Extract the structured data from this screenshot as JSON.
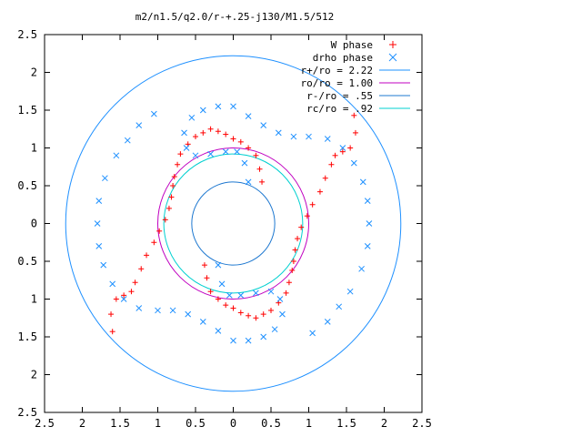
{
  "chart_data": {
    "type": "scatter",
    "title": "m2/n1.5/q2.0/r-+.25-j130/M1.5/512",
    "xlabel": "",
    "ylabel": "",
    "xlim": [
      -2.5,
      2.5
    ],
    "ylim": [
      -2.5,
      2.5
    ],
    "x_ticks": [
      "2.5",
      "2",
      "1.5",
      "1",
      "0.5",
      "0",
      "0.5",
      "1",
      "1.5",
      "2",
      "2.5"
    ],
    "y_ticks": [
      "2.5",
      "2",
      "1.5",
      "1",
      "0.5",
      "0",
      "0.5",
      "1",
      "1.5",
      "2",
      "2.5"
    ],
    "grid": false,
    "legend_position": "top-right",
    "series": [
      {
        "name": "W phase",
        "marker": "plus",
        "color": "#ff0000",
        "description_values": "two-arm spiral of points"
      },
      {
        "name": "drho phase",
        "marker": "x",
        "color": "#1e90ff",
        "description_values": "two-arm spiral of points"
      }
    ],
    "circles": [
      {
        "name": "r+/ro = 2.22",
        "radius": 2.22,
        "color": "#1e90ff"
      },
      {
        "name": "ro/ro = 1.00",
        "radius": 1.0,
        "color": "#c000c0"
      },
      {
        "name": "r-/ro = .55",
        "radius": 0.55,
        "color": "#1e78d0"
      },
      {
        "name": "rc/ro = .92",
        "radius": 0.92,
        "color": "#00d0d0"
      }
    ],
    "spiral_points": {
      "W phase": [
        [
          -1.6,
          -1.43
        ],
        [
          -1.62,
          -1.2
        ],
        [
          -1.55,
          -1.0
        ],
        [
          -1.45,
          -0.95
        ],
        [
          -1.35,
          -0.9
        ],
        [
          -1.3,
          -0.78
        ],
        [
          -1.22,
          -0.6
        ],
        [
          -1.15,
          -0.42
        ],
        [
          -1.05,
          -0.25
        ],
        [
          -0.98,
          -0.1
        ],
        [
          -0.9,
          0.05
        ],
        [
          -0.85,
          0.2
        ],
        [
          -0.82,
          0.35
        ],
        [
          -0.8,
          0.5
        ],
        [
          -0.78,
          0.62
        ],
        [
          -0.74,
          0.78
        ],
        [
          -0.7,
          0.92
        ],
        [
          -0.6,
          1.05
        ],
        [
          -0.5,
          1.15
        ],
        [
          -0.4,
          1.2
        ],
        [
          -0.3,
          1.25
        ],
        [
          -0.2,
          1.22
        ],
        [
          -0.1,
          1.18
        ],
        [
          0.0,
          1.12
        ],
        [
          0.1,
          1.08
        ],
        [
          0.2,
          1.0
        ],
        [
          0.3,
          0.9
        ],
        [
          0.35,
          0.72
        ],
        [
          0.38,
          0.55
        ],
        [
          1.6,
          1.43
        ],
        [
          1.62,
          1.2
        ],
        [
          1.55,
          1.0
        ],
        [
          1.45,
          0.95
        ],
        [
          1.35,
          0.9
        ],
        [
          1.3,
          0.78
        ],
        [
          1.22,
          0.6
        ],
        [
          1.15,
          0.42
        ],
        [
          1.05,
          0.25
        ],
        [
          0.98,
          0.1
        ],
        [
          0.9,
          -0.05
        ],
        [
          0.85,
          -0.2
        ],
        [
          0.82,
          -0.35
        ],
        [
          0.8,
          -0.5
        ],
        [
          0.78,
          -0.62
        ],
        [
          0.74,
          -0.78
        ],
        [
          0.7,
          -0.92
        ],
        [
          0.6,
          -1.05
        ],
        [
          0.5,
          -1.15
        ],
        [
          0.4,
          -1.2
        ],
        [
          0.3,
          -1.25
        ],
        [
          0.2,
          -1.22
        ],
        [
          0.1,
          -1.18
        ],
        [
          0.0,
          -1.12
        ],
        [
          -0.1,
          -1.08
        ],
        [
          -0.2,
          -1.0
        ],
        [
          -0.3,
          -0.9
        ],
        [
          -0.35,
          -0.72
        ],
        [
          -0.38,
          -0.55
        ]
      ],
      "drho phase": [
        [
          -1.05,
          1.45
        ],
        [
          -1.25,
          1.3
        ],
        [
          -1.4,
          1.1
        ],
        [
          -1.55,
          0.9
        ],
        [
          -1.7,
          0.6
        ],
        [
          -1.78,
          0.3
        ],
        [
          -1.8,
          0.0
        ],
        [
          -1.78,
          -0.3
        ],
        [
          -1.72,
          -0.55
        ],
        [
          -1.6,
          -0.8
        ],
        [
          -1.45,
          -1.0
        ],
        [
          -1.25,
          -1.12
        ],
        [
          -1.0,
          -1.15
        ],
        [
          -0.8,
          -1.15
        ],
        [
          -0.6,
          -1.2
        ],
        [
          -0.4,
          -1.3
        ],
        [
          -0.2,
          -1.42
        ],
        [
          0.0,
          -1.55
        ],
        [
          0.2,
          -1.55
        ],
        [
          0.4,
          -1.5
        ],
        [
          0.55,
          -1.4
        ],
        [
          0.65,
          -1.2
        ],
        [
          0.62,
          -1.0
        ],
        [
          0.5,
          -0.9
        ],
        [
          0.3,
          -0.92
        ],
        [
          0.1,
          -0.95
        ],
        [
          -0.05,
          -0.95
        ],
        [
          -0.15,
          -0.8
        ],
        [
          -0.2,
          -0.55
        ],
        [
          1.05,
          -1.45
        ],
        [
          1.25,
          -1.3
        ],
        [
          1.4,
          -1.1
        ],
        [
          1.55,
          -0.9
        ],
        [
          1.7,
          -0.6
        ],
        [
          1.78,
          -0.3
        ],
        [
          1.8,
          0.0
        ],
        [
          1.78,
          0.3
        ],
        [
          1.72,
          0.55
        ],
        [
          1.6,
          0.8
        ],
        [
          1.45,
          1.0
        ],
        [
          1.25,
          1.12
        ],
        [
          1.0,
          1.15
        ],
        [
          0.8,
          1.15
        ],
        [
          0.6,
          1.2
        ],
        [
          0.4,
          1.3
        ],
        [
          0.2,
          1.42
        ],
        [
          0.0,
          1.55
        ],
        [
          -0.2,
          1.55
        ],
        [
          -0.4,
          1.5
        ],
        [
          -0.55,
          1.4
        ],
        [
          -0.65,
          1.2
        ],
        [
          -0.62,
          1.0
        ],
        [
          -0.5,
          0.9
        ],
        [
          -0.3,
          0.92
        ],
        [
          -0.1,
          0.95
        ],
        [
          0.05,
          0.95
        ],
        [
          0.15,
          0.8
        ],
        [
          0.2,
          0.55
        ]
      ]
    }
  }
}
